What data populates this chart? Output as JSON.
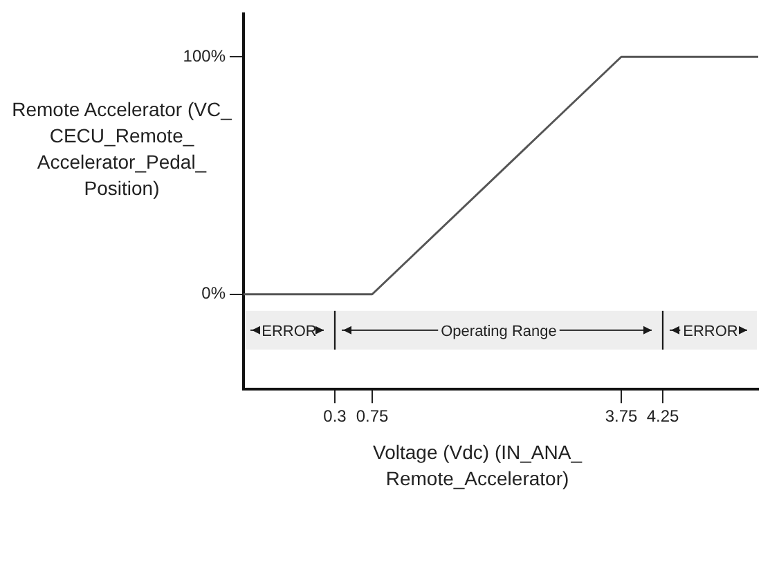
{
  "chart_data": {
    "type": "line",
    "xlabel": "Voltage (Vdc) (IN_ANA_Remote_Accelerator)",
    "ylabel": "Remote Accelerator (VC_CECU_Remote_Accelerator_Pedal_Position)",
    "x": [
      -0.8,
      0.75,
      3.75,
      5.4
    ],
    "series": [
      {
        "color": "#555555",
        "values": [
          0,
          0,
          100,
          100
        ]
      }
    ],
    "xlim": [
      -0.8,
      5.4
    ],
    "xticks": [
      0.3,
      0.75,
      3.75,
      4.25
    ],
    "ylim": [
      -40,
      118
    ],
    "yticks": [
      {
        "value": 0,
        "label": "0%"
      },
      {
        "value": 100,
        "label": "100%"
      }
    ],
    "bands": [
      {
        "axis": "x",
        "from": -0.8,
        "to": 0.3,
        "label": "ERROR",
        "color": "#eeeeee"
      },
      {
        "axis": "x",
        "from": 0.3,
        "to": 4.25,
        "label": "Operating Range",
        "color": "#eeeeee"
      },
      {
        "axis": "x",
        "from": 4.25,
        "to": 5.4,
        "label": "ERROR",
        "color": "#eeeeee"
      }
    ],
    "ref_lines": [
      {
        "axis": "x",
        "value": 0.3,
        "color": "#1a1a1a"
      },
      {
        "axis": "x",
        "value": 4.25,
        "color": "#1a1a1a"
      }
    ],
    "grid": false,
    "legend": false,
    "marker": "none",
    "line_style": "solid"
  }
}
